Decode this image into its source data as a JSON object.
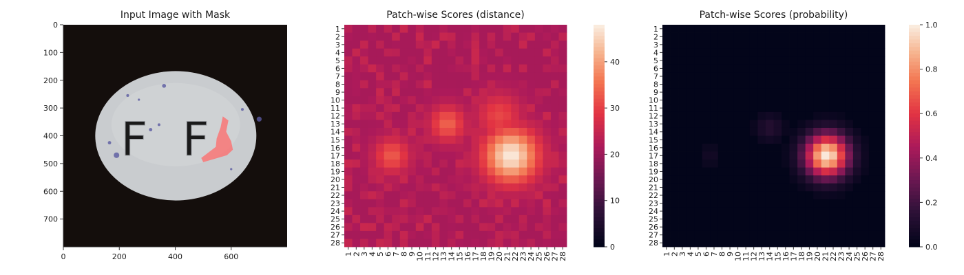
{
  "chart_data": [
    {
      "type": "image",
      "title": "Input Image with Mask",
      "x_ticks": [
        "0",
        "200",
        "400",
        "600"
      ],
      "y_ticks": [
        "0",
        "100",
        "200",
        "300",
        "400",
        "500",
        "600",
        "700"
      ],
      "xlim": [
        0,
        800
      ],
      "ylim": [
        800,
        0
      ],
      "annotations": [
        "F",
        "F"
      ],
      "colors": {
        "background": "#140e0c",
        "pill": "#c9cccf",
        "speckle": "#5a5aa0",
        "mask": "#ff6a6a"
      }
    },
    {
      "type": "heatmap",
      "title": "Patch-wise Scores (distance)",
      "x_ticks": [
        "1",
        "2",
        "3",
        "4",
        "5",
        "6",
        "7",
        "8",
        "9",
        "10",
        "11",
        "12",
        "13",
        "14",
        "15",
        "16",
        "17",
        "18",
        "19",
        "20",
        "21",
        "22",
        "23",
        "24",
        "25",
        "26",
        "27",
        "28"
      ],
      "y_ticks": [
        "1",
        "2",
        "3",
        "4",
        "5",
        "6",
        "7",
        "8",
        "9",
        "10",
        "11",
        "12",
        "13",
        "14",
        "15",
        "16",
        "17",
        "18",
        "19",
        "20",
        "21",
        "22",
        "23",
        "24",
        "25",
        "26",
        "27",
        "28"
      ],
      "colorbar_ticks": [
        "0",
        "10",
        "20",
        "30",
        "40"
      ],
      "vmin": 0,
      "vmax": 48,
      "colormap": "rocket",
      "hotspots": [
        {
          "row": 17,
          "col": 21.5,
          "peak": 48,
          "spread": 2.4
        },
        {
          "row": 13,
          "col": 13.5,
          "peak": 34,
          "spread": 1.6
        },
        {
          "row": 17,
          "col": 6.5,
          "peak": 33,
          "spread": 1.6
        },
        {
          "row": 12,
          "col": 20,
          "peak": 31,
          "spread": 2.0
        }
      ],
      "baseline": 21
    },
    {
      "type": "heatmap",
      "title": "Patch-wise Scores (probability)",
      "x_ticks": [
        "1",
        "2",
        "3",
        "4",
        "5",
        "6",
        "7",
        "8",
        "9",
        "10",
        "11",
        "12",
        "13",
        "14",
        "15",
        "16",
        "17",
        "18",
        "19",
        "20",
        "21",
        "22",
        "23",
        "24",
        "25",
        "26",
        "27",
        "28"
      ],
      "y_ticks": [
        "1",
        "2",
        "3",
        "4",
        "5",
        "6",
        "7",
        "8",
        "9",
        "10",
        "11",
        "12",
        "13",
        "14",
        "15",
        "16",
        "17",
        "18",
        "19",
        "20",
        "21",
        "22",
        "23",
        "24",
        "25",
        "26",
        "27",
        "28"
      ],
      "colorbar_ticks": [
        "0.0",
        "0.2",
        "0.4",
        "0.6",
        "0.8",
        "1.0"
      ],
      "vmin": 0,
      "vmax": 1,
      "colormap": "rocket",
      "hotspots": [
        {
          "row": 17,
          "col": 21.2,
          "peak": 1.0,
          "spread": 1.9
        },
        {
          "row": 13.5,
          "col": 14,
          "peak": 0.12,
          "spread": 1.2
        },
        {
          "row": 17,
          "col": 6.5,
          "peak": 0.06,
          "spread": 1.0
        }
      ],
      "baseline": 0
    }
  ]
}
